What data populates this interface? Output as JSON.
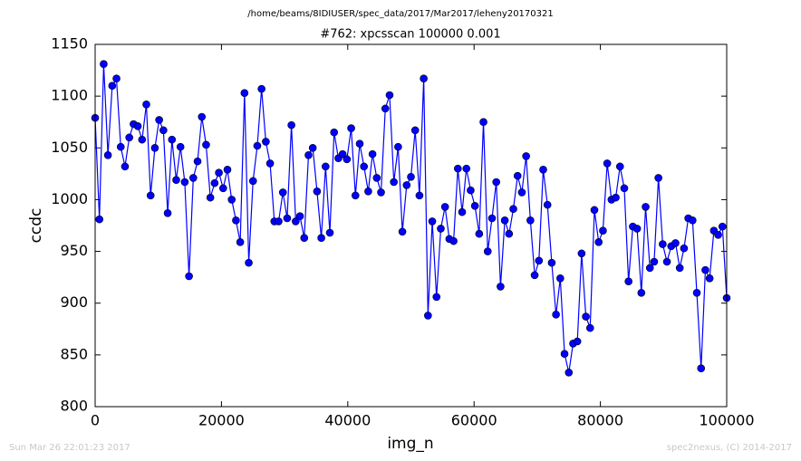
{
  "chart_data": {
    "type": "line",
    "title": "/home/beams/8IDIUSER/spec_data/2017/Mar2017/leheny20170321",
    "subtitle": "#762: xpcsscan 100000 0.001",
    "xlabel": "img_n",
    "ylabel": "ccdc",
    "footer_left": "Sun Mar 26 22:01:23 2017",
    "footer_right": "spec2nexus, (C) 2014-2017",
    "color": "#0000ff",
    "marker": "circle",
    "xlim": [
      0,
      100000
    ],
    "xticks": [
      0,
      20000,
      40000,
      60000,
      80000,
      100000
    ],
    "ylim": [
      800,
      1150
    ],
    "yticks": [
      800,
      850,
      900,
      950,
      1000,
      1050,
      1100,
      1150
    ],
    "grid": false,
    "x": [
      0,
      676,
      1351,
      2027,
      2703,
      3378,
      4054,
      4730,
      5405,
      6081,
      6757,
      7432,
      8108,
      8784,
      9459,
      10135,
      10811,
      11486,
      12162,
      12838,
      13514,
      14189,
      14865,
      15541,
      16216,
      16892,
      17568,
      18243,
      18919,
      19595,
      20270,
      20946,
      21622,
      22297,
      22973,
      23649,
      24324,
      25000,
      25676,
      26351,
      27027,
      27703,
      28378,
      29054,
      29730,
      30405,
      31081,
      31757,
      32432,
      33108,
      33784,
      34459,
      35135,
      35811,
      36486,
      37162,
      37838,
      38514,
      39189,
      39865,
      40541,
      41216,
      41892,
      42568,
      43243,
      43919,
      44595,
      45270,
      45946,
      46622,
      47297,
      47973,
      48649,
      49324,
      50000,
      50676,
      51351,
      52027,
      52703,
      53378,
      54054,
      54730,
      55405,
      56081,
      56757,
      57432,
      58108,
      58784,
      59459,
      60135,
      60811,
      61486,
      62162,
      62838,
      63514,
      64189,
      64865,
      65541,
      66216,
      66892,
      67568,
      68243,
      68919,
      69595,
      70270,
      70946,
      71622,
      72297,
      72973,
      73649,
      74324,
      75000,
      75676,
      76351,
      77027,
      77703,
      78378,
      79054,
      79730,
      80405,
      81081,
      81757,
      82432,
      83108,
      83784,
      84459,
      85135,
      85811,
      86486,
      87162,
      87838,
      88514,
      89189,
      89865,
      90541,
      91216,
      91892,
      92568,
      93243,
      93919,
      94595,
      95270,
      95946,
      96622,
      97297,
      97973,
      98649,
      99324,
      100000
    ],
    "values": [
      1079,
      981,
      1131,
      1043,
      1110,
      1117,
      1051,
      1032,
      1060,
      1073,
      1071,
      1058,
      1092,
      1004,
      1050,
      1077,
      1067,
      987,
      1058,
      1019,
      1051,
      1017,
      926,
      1021,
      1037,
      1080,
      1053,
      1002,
      1016,
      1026,
      1011,
      1029,
      1000,
      980,
      959,
      1103,
      939,
      1018,
      1052,
      1107,
      1056,
      1035,
      979,
      979,
      1007,
      982,
      1072,
      979,
      984,
      963,
      1043,
      1050,
      1008,
      963,
      1032,
      968,
      1065,
      1040,
      1044,
      1039,
      1069,
      1004,
      1054,
      1032,
      1008,
      1044,
      1021,
      1007,
      1088,
      1101,
      1017,
      1051,
      969,
      1014,
      1022,
      1067,
      1004,
      1117,
      888,
      979,
      906,
      972,
      993,
      962,
      960,
      1030,
      988,
      1030,
      1009,
      994,
      967,
      1075,
      950,
      982,
      1017,
      916,
      980,
      967,
      991,
      1023,
      1007,
      1042,
      980,
      927,
      941,
      1029,
      995,
      939,
      889,
      924,
      851,
      833,
      861,
      863,
      948,
      887,
      876,
      990,
      959,
      970,
      1035,
      1000,
      1002,
      1032,
      1011,
      921,
      974,
      972,
      910,
      993,
      934,
      940,
      1021,
      957,
      940,
      955,
      958,
      934,
      953,
      982,
      980,
      910,
      837,
      932,
      924,
      970,
      966,
      974,
      905
    ]
  }
}
